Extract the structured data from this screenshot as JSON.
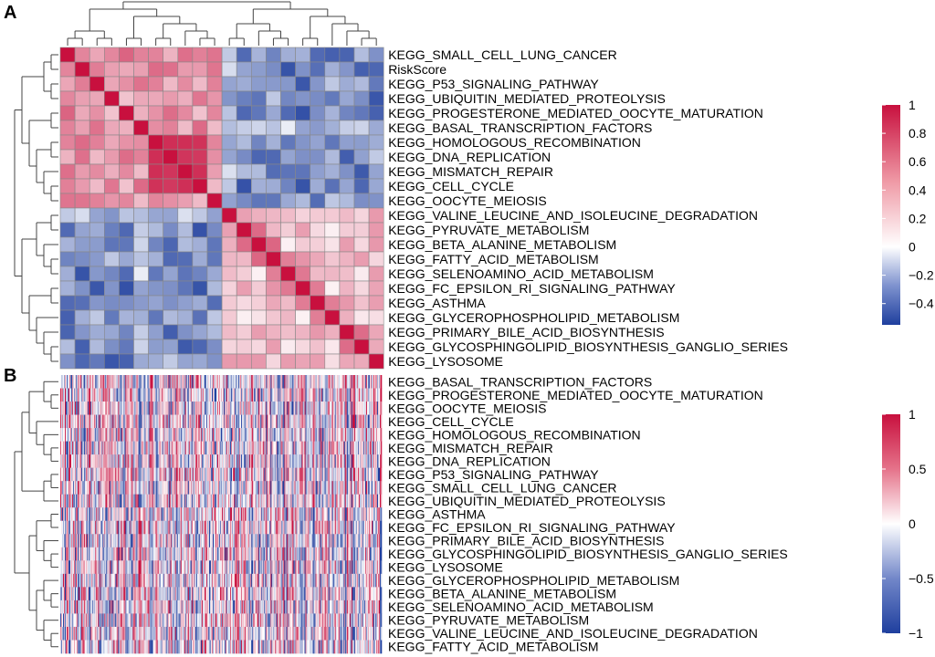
{
  "panels": [
    {
      "id": "A",
      "letter": "A"
    },
    {
      "id": "B",
      "letter": "B"
    }
  ],
  "colors": {
    "low": "#1f3f9e",
    "mid": "#ffffff",
    "high": "#c8103e",
    "grid": "#888888"
  },
  "chart_data": [
    {
      "type": "heatmap",
      "panel": "A",
      "description_kind": "correlation",
      "row_labels": [
        "KEGG_SMALL_CELL_LUNG_CANCER",
        "RiskScore",
        "KEGG_P53_SIGNALING_PATHWAY",
        "KEGG_UBIQUITIN_MEDIATED_PROTEOLYSIS",
        "KEGG_PROGESTERONE_MEDIATED_OOCYTE_MATURATION",
        "KEGG_BASAL_TRANSCRIPTION_FACTORS",
        "KEGG_HOMOLOGOUS_RECOMBINATION",
        "KEGG_DNA_REPLICATION",
        "KEGG_MISMATCH_REPAIR",
        "KEGG_CELL_CYCLE",
        "KEGG_OOCYTE_MEIOSIS",
        "KEGG_VALINE_LEUCINE_AND_ISOLEUCINE_DEGRADATION",
        "KEGG_PYRUVATE_METABOLISM",
        "KEGG_BETA_ALANINE_METABOLISM",
        "KEGG_FATTY_ACID_METABOLISM",
        "KEGG_SELENOAMINO_ACID_METABOLISM",
        "KEGG_FC_EPSILON_RI_SIGNALING_PATHWAY",
        "KEGG_ASTHMA",
        "KEGG_GLYCEROPHOSPHOLIPID_METABOLISM",
        "KEGG_PRIMARY_BILE_ACID_BIOSYNTHESIS",
        "KEGG_GLYCOSPHINGOLIPID_BIOSYNTHESIS_GANGLIO_SERIES",
        "KEGG_LYSOSOME"
      ],
      "groups": {
        "first_block_size": 11
      },
      "approx_values": {
        "within_block1": [
          0.2,
          0.7
        ],
        "block1_core_DNA_repair": [
          0.75,
          0.9
        ],
        "within_block2": [
          0.0,
          0.5
        ],
        "between_blocks": [
          -0.5,
          -0.1
        ],
        "diagonal": 1
      },
      "colorbar": {
        "min": -0.55,
        "max": 1,
        "ticks": [
          1,
          0.8,
          0.6,
          0.4,
          0.2,
          0,
          -0.2,
          -0.4
        ],
        "tick_labels": [
          "1",
          "0.8",
          "0.6",
          "0.4",
          "0.2",
          "0",
          "−0.2",
          "−0.4"
        ]
      }
    },
    {
      "type": "heatmap",
      "panel": "B",
      "description_kind": "per-sample scores",
      "row_labels": [
        "KEGG_BASAL_TRANSCRIPTION_FACTORS",
        "KEGG_PROGESTERONE_MEDIATED_OOCYTE_MATURATION",
        "KEGG_OOCYTE_MEIOSIS",
        "KEGG_CELL_CYCLE",
        "KEGG_HOMOLOGOUS_RECOMBINATION",
        "KEGG_MISMATCH_REPAIR",
        "KEGG_DNA_REPLICATION",
        "KEGG_P53_SIGNALING_PATHWAY",
        "KEGG_SMALL_CELL_LUNG_CANCER",
        "KEGG_UBIQUITIN_MEDIATED_PROTEOLYSIS",
        "KEGG_ASTHMA",
        "KEGG_FC_EPSILON_RI_SIGNALING_PATHWAY",
        "KEGG_PRIMARY_BILE_ACID_BIOSYNTHESIS",
        "KEGG_GLYCOSPHINGOLIPID_BIOSYNTHESIS_GANGLIO_SERIES",
        "KEGG_LYSOSOME",
        "KEGG_GLYCEROPHOSPHOLIPID_METABOLISM",
        "KEGG_BETA_ALANINE_METABOLISM",
        "KEGG_SELENOAMINO_ACID_METABOLISM",
        "KEGG_PYRUVATE_METABOLISM",
        "KEGG_VALINE_LEUCINE_AND_ISOLEUCINE_DEGRADATION",
        "KEGG_FATTY_ACID_METABOLISM"
      ],
      "n_columns_approx": 350,
      "colorbar": {
        "min": -1,
        "max": 1,
        "ticks": [
          1,
          0.5,
          0,
          -0.5,
          -1
        ],
        "tick_labels": [
          "1",
          "0.5",
          "0",
          "−0.5",
          "−1"
        ]
      }
    }
  ]
}
